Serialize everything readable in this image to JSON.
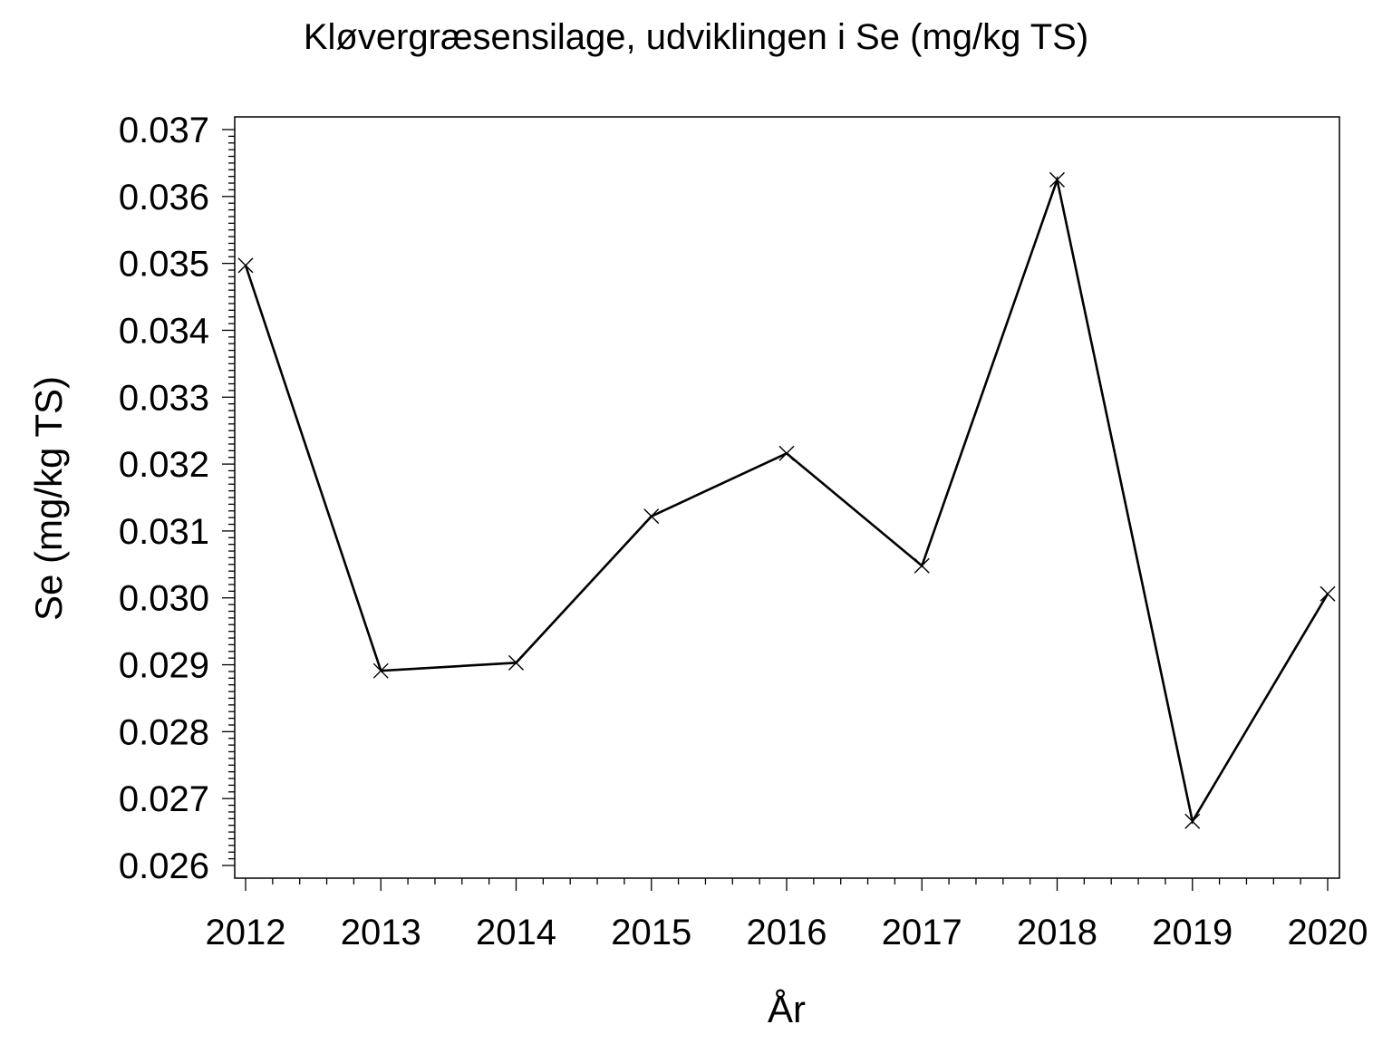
{
  "chart_data": {
    "type": "line",
    "title": "Kløvergræsensilage,  udviklingen  i  Se  (mg/kg  TS)",
    "xlabel": "År",
    "ylabel": "Se  (mg/kg  TS)",
    "x": [
      2012,
      2013,
      2014,
      2015,
      2016,
      2017,
      2018,
      2019,
      2020
    ],
    "series": [
      {
        "values": [
          0.03497,
          0.02891,
          0.02903,
          0.03122,
          0.03216,
          0.03048,
          0.03625,
          0.02666,
          0.03006
        ]
      }
    ],
    "xlim": [
      2012,
      2020
    ],
    "ylim": [
      0.026,
      0.037
    ],
    "yticks": [
      "0.026",
      "0.027",
      "0.028",
      "0.029",
      "0.030",
      "0.031",
      "0.032",
      "0.033",
      "0.034",
      "0.035",
      "0.036",
      "0.037"
    ],
    "xticks": [
      "2012",
      "2013",
      "2014",
      "2015",
      "2016",
      "2017",
      "2018",
      "2019",
      "2020"
    ],
    "marker": "x",
    "line_color": "#000000",
    "grid": false,
    "legend": "none"
  }
}
